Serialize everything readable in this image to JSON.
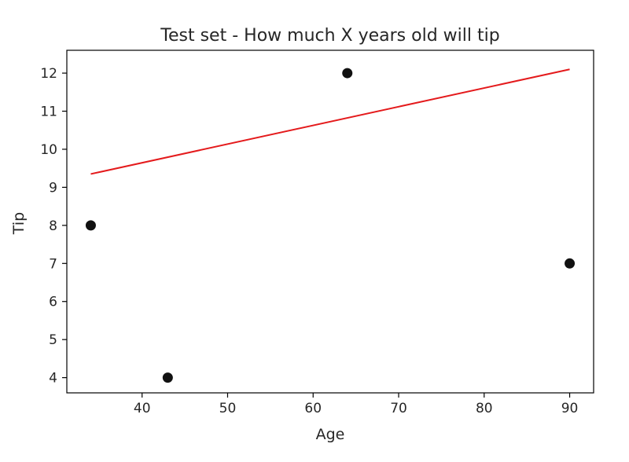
{
  "chart_data": {
    "type": "scatter",
    "title": "Test set - How much X years old will tip",
    "xlabel": "Age",
    "ylabel": "Tip",
    "xlim": [
      31.2,
      92.8
    ],
    "ylim": [
      3.6,
      12.6
    ],
    "xticks": [
      40,
      50,
      60,
      70,
      80,
      90
    ],
    "yticks": [
      4,
      5,
      6,
      7,
      8,
      9,
      10,
      11,
      12
    ],
    "grid": false,
    "points": {
      "x": [
        34,
        43,
        64,
        90
      ],
      "y": [
        8,
        4,
        12,
        7
      ],
      "color": "#111111"
    },
    "line": {
      "x": [
        34,
        90
      ],
      "y": [
        9.35,
        12.1
      ],
      "color": "#e41a1c"
    }
  }
}
